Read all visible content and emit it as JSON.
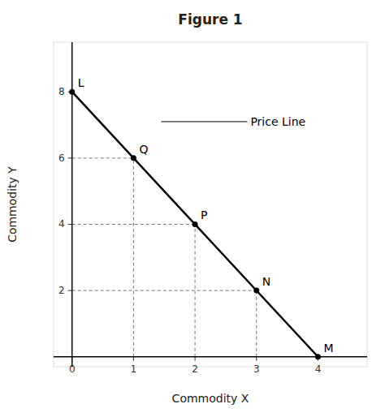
{
  "chart_data": {
    "type": "line",
    "title": "Figure 1",
    "x_label": "Commodity X",
    "y_label": "Commodity Y",
    "xlim": [
      -0.3,
      4.8
    ],
    "ylim": [
      -0.3,
      9.5
    ],
    "xticks": [
      0,
      1,
      2,
      3,
      4
    ],
    "yticks": [
      2,
      4,
      6,
      8
    ],
    "series": [
      {
        "color": "#000000",
        "x": [
          0,
          4
        ],
        "values": [
          8,
          0
        ]
      }
    ],
    "points": [
      {
        "label": "L",
        "x": 0,
        "y": 8
      },
      {
        "label": "M",
        "x": 4,
        "y": 0
      },
      {
        "label": "Q",
        "x": 1,
        "y": 6
      },
      {
        "label": "P",
        "x": 2,
        "y": 4
      },
      {
        "label": "N",
        "x": 3,
        "y": 2
      }
    ],
    "drop_lines": [
      {
        "x": 1,
        "y": 6
      },
      {
        "x": 2,
        "y": 4
      },
      {
        "x": 3,
        "y": 2
      }
    ],
    "annotations": [
      {
        "text": "Price Line",
        "x": 2.85,
        "y": 7.1,
        "arrow_x": 1.45
      }
    ]
  }
}
